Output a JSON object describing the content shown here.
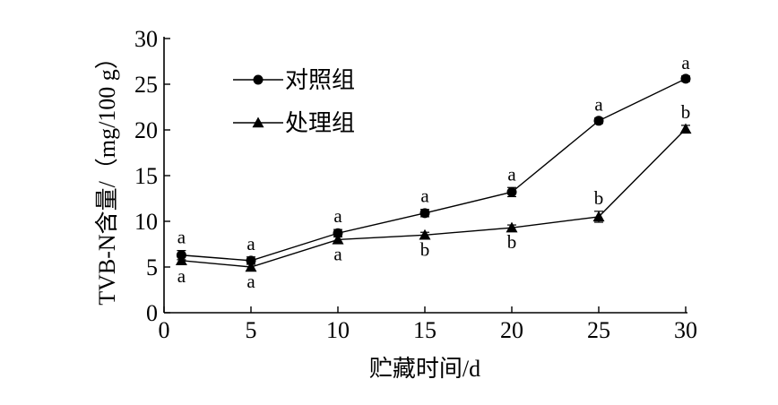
{
  "chart_data": {
    "type": "line",
    "xlabel": "贮藏时间/d",
    "ylabel": "TVB-N含量/（mg/100 g）",
    "xlim": [
      0,
      30
    ],
    "ylim": [
      0,
      30
    ],
    "xticks": [
      0,
      5,
      10,
      15,
      20,
      25,
      30
    ],
    "yticks": [
      0,
      5,
      10,
      15,
      20,
      25,
      30
    ],
    "grid": false,
    "legend": "top-left",
    "x": [
      1,
      5,
      10,
      15,
      20,
      25,
      30
    ],
    "series": [
      {
        "name": "对照组",
        "marker": "circle",
        "values": [
          6.3,
          5.7,
          8.7,
          10.9,
          13.2,
          21.0,
          25.6
        ],
        "errors": [
          0.5,
          0.4,
          0.4,
          0.4,
          0.5,
          0.3,
          0.3
        ],
        "labels": [
          "a",
          "a",
          "a",
          "a",
          "a",
          "a",
          "a"
        ],
        "label_position": "above"
      },
      {
        "name": "处理组",
        "marker": "triangle",
        "values": [
          5.7,
          5.0,
          8.0,
          8.5,
          9.3,
          10.5,
          20.1
        ],
        "errors": [
          0.4,
          0.3,
          0.3,
          0.3,
          0.3,
          0.6,
          0.4
        ],
        "labels": [
          "a",
          "a",
          "a",
          "b",
          "b",
          "b",
          "b"
        ],
        "label_positions": [
          "below",
          "below",
          "below",
          "below",
          "below",
          "above",
          "above"
        ]
      }
    ],
    "colors": {
      "line": "#000000",
      "marker": "#000000"
    }
  }
}
